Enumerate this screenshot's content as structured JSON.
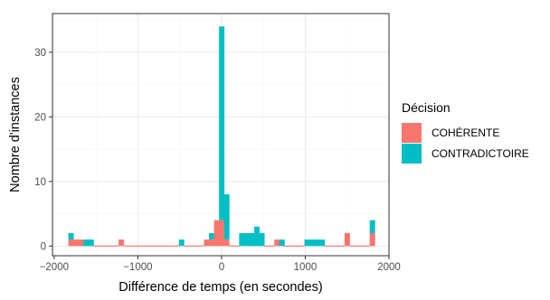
{
  "chart_data": {
    "type": "bar",
    "xlabel": "Différence de temps (en secondes)",
    "ylabel": "Nombre d'instances",
    "xlim": [
      -2020,
      2000
    ],
    "ylim": [
      -1.5,
      36
    ],
    "x_ticks": [
      -2000,
      -1000,
      0,
      1000,
      2000
    ],
    "x_tick_labels": [
      "−2000",
      "−1000",
      "0",
      "1000",
      "2000"
    ],
    "y_ticks": [
      0,
      10,
      20,
      30
    ],
    "y_tick_labels": [
      "0",
      "10",
      "20",
      "30"
    ],
    "grid": true,
    "bin_width": 60,
    "bin_centers": [
      -1800,
      -1740,
      -1680,
      -1620,
      -1560,
      -1500,
      -1440,
      -1380,
      -1320,
      -1260,
      -1200,
      -1140,
      -1080,
      -1020,
      -960,
      -900,
      -840,
      -780,
      -720,
      -660,
      -600,
      -540,
      -480,
      -420,
      -360,
      -300,
      -240,
      -180,
      -120,
      -60,
      0,
      60,
      120,
      180,
      240,
      300,
      360,
      420,
      480,
      540,
      600,
      660,
      720,
      780,
      840,
      900,
      960,
      1020,
      1080,
      1140,
      1200,
      1260,
      1320,
      1380,
      1440,
      1500,
      1560,
      1620,
      1680,
      1740,
      1800
    ],
    "series": [
      {
        "name": "COHÉRENTE",
        "values": [
          1,
          1,
          1,
          0,
          0,
          0,
          0,
          0,
          0,
          0,
          1,
          0,
          0,
          0,
          0,
          0,
          0,
          0,
          0,
          0,
          0,
          0,
          0,
          0,
          0,
          0,
          0,
          1,
          1,
          4,
          4,
          1,
          0,
          0,
          0,
          0,
          0,
          0,
          0,
          0,
          0,
          1,
          0,
          0,
          0,
          0,
          0,
          0,
          0,
          0,
          0,
          0,
          0,
          0,
          0,
          2,
          0,
          0,
          0,
          0,
          2
        ]
      },
      {
        "name": "CONTRADICTOIRE",
        "values": [
          1,
          0,
          0,
          1,
          1,
          0,
          0,
          0,
          0,
          0,
          0,
          0,
          0,
          0,
          0,
          0,
          0,
          0,
          0,
          0,
          0,
          0,
          1,
          0,
          0,
          0,
          0,
          0,
          1,
          0,
          30,
          7,
          0,
          0,
          2,
          2,
          2,
          3,
          2,
          0,
          0,
          0,
          1,
          0,
          0,
          0,
          0,
          1,
          1,
          1,
          1,
          0,
          0,
          0,
          0,
          0,
          0,
          0,
          0,
          0,
          2
        ]
      }
    ],
    "legend": {
      "title": "Décision",
      "position": "right",
      "entries": [
        "COHÉRENTE",
        "CONTRADICTOIRE"
      ]
    },
    "colors": {
      "COHÉRENTE": "#F8766D",
      "CONTRADICTOIRE": "#00BFC4",
      "grid_major": "#ebebeb",
      "grid_minor": "#f5f5f5",
      "panel_border": "#333333"
    }
  }
}
